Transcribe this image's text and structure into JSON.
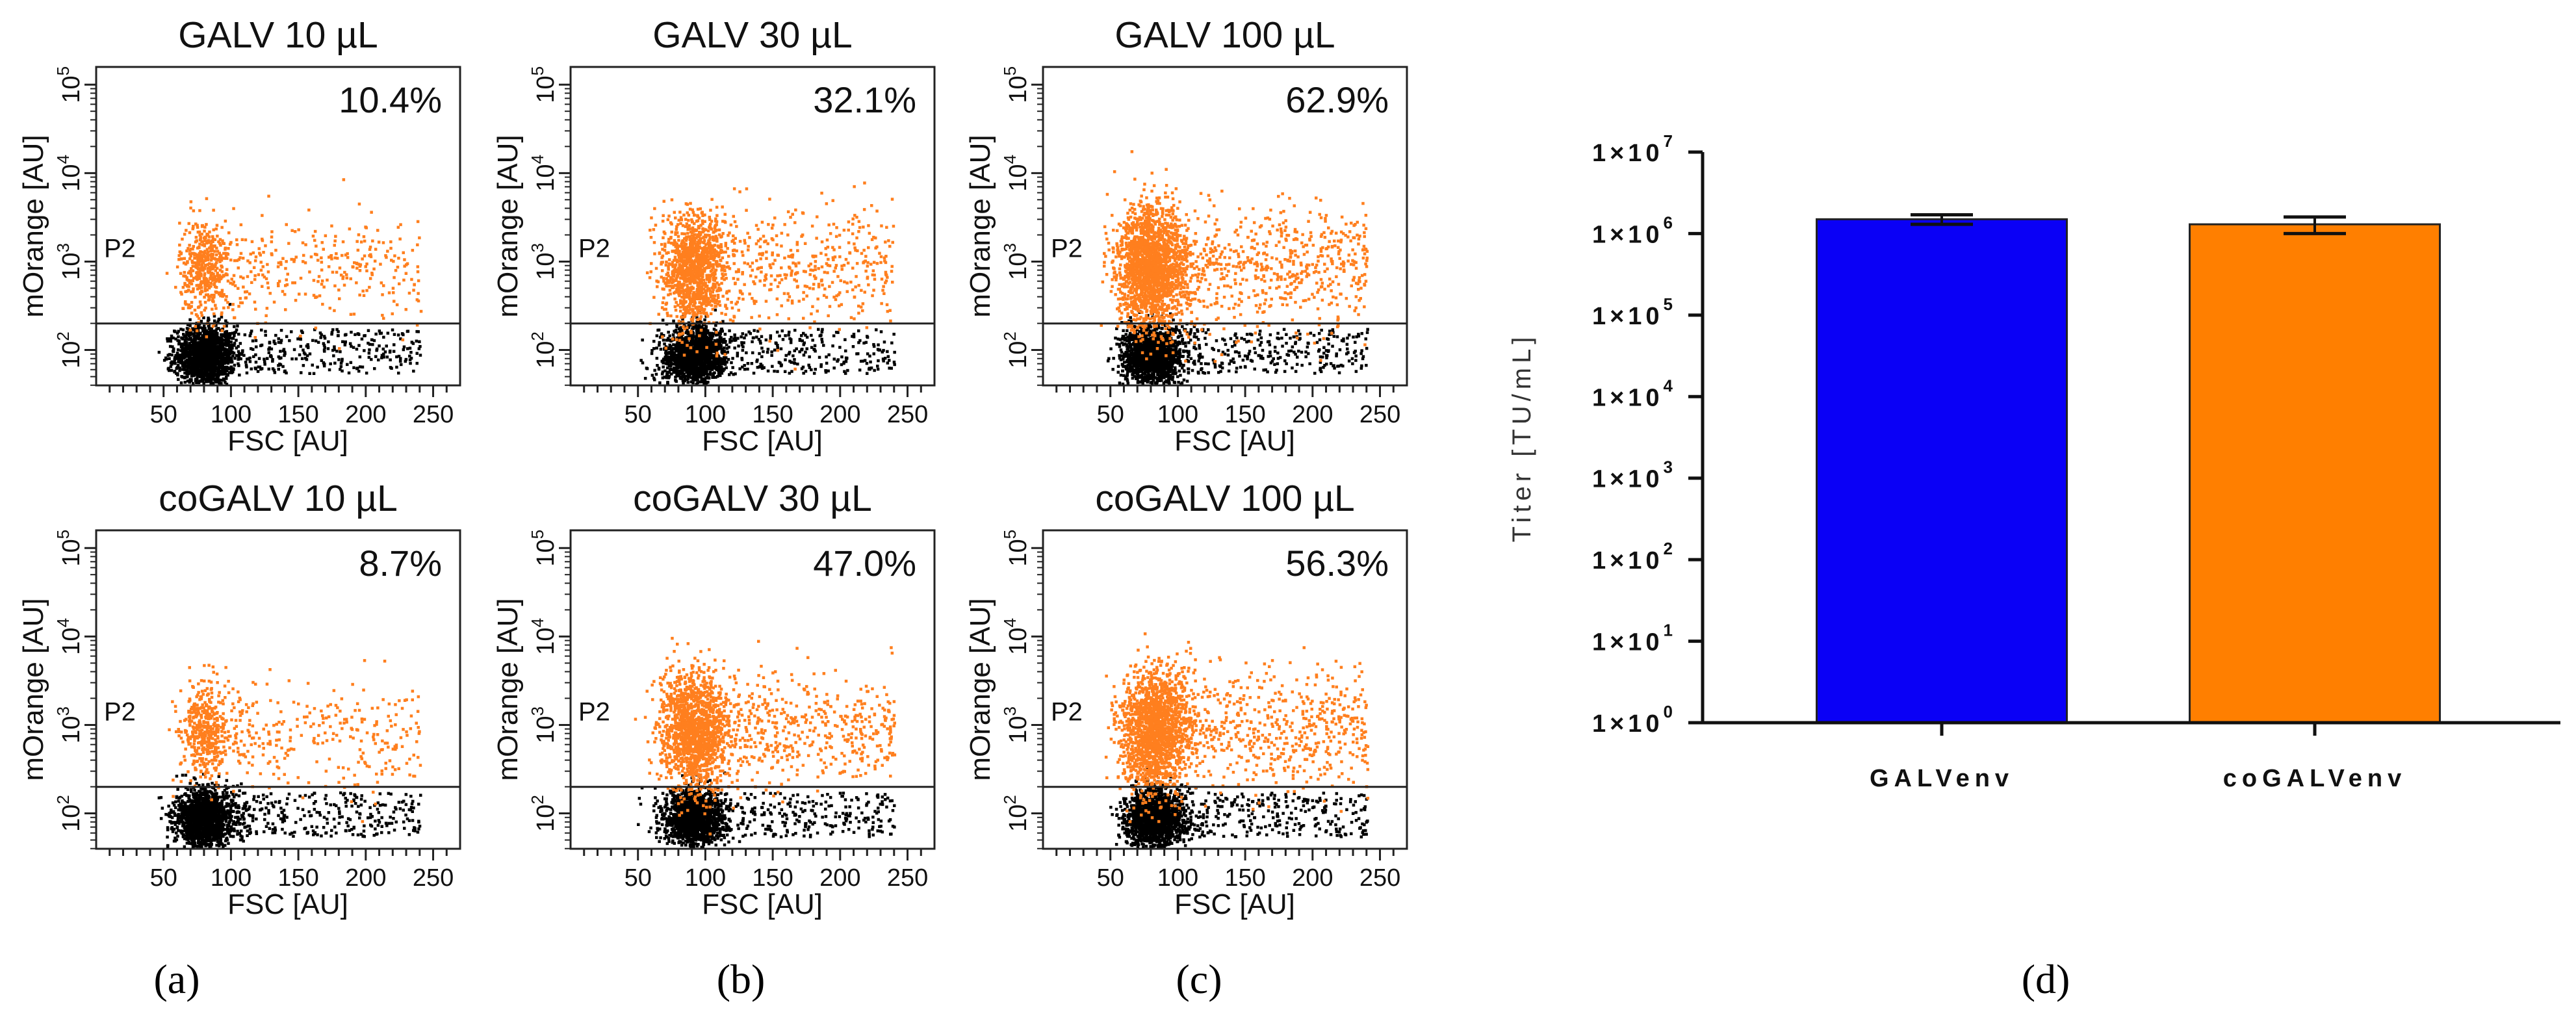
{
  "chart_data": [
    {
      "type": "scatter",
      "title": "GALV 10 µL",
      "percent_label": "10.4%",
      "gate_label": "P2",
      "xlabel": "FSC [AU]",
      "ylabel": "mOrange [AU]",
      "xticks": [
        "50",
        "100",
        "150",
        "200",
        "250"
      ],
      "xlim": [
        0,
        270
      ],
      "ylim": [
        1.6,
        5.2
      ],
      "gate_log10": 2.3,
      "density": 0.42,
      "core_center_x": 80,
      "colors": {
        "positive": "#FF7F1E",
        "negative": "#000000"
      }
    },
    {
      "type": "scatter",
      "title": "GALV 30 µL",
      "percent_label": "32.1%",
      "gate_label": "P2",
      "xlabel": "FSC [AU]",
      "ylabel": "mOrange [AU]",
      "xticks": [
        "50",
        "100",
        "150",
        "200",
        "250"
      ],
      "xlim": [
        0,
        270
      ],
      "ylim": [
        1.6,
        5.2
      ],
      "gate_log10": 2.3,
      "density": 0.75,
      "core_center_x": 90,
      "colors": {
        "positive": "#FF7F1E",
        "negative": "#000000"
      }
    },
    {
      "type": "scatter",
      "title": "GALV 100 µL",
      "percent_label": "62.9%",
      "gate_label": "P2",
      "xlabel": "FSC [AU]",
      "ylabel": "mOrange [AU]",
      "xticks": [
        "50",
        "100",
        "150",
        "200",
        "250"
      ],
      "xlim": [
        0,
        270
      ],
      "ylim": [
        1.6,
        5.2
      ],
      "gate_log10": 2.3,
      "density": 1.0,
      "core_center_x": 80,
      "colors": {
        "positive": "#FF7F1E",
        "negative": "#000000"
      }
    },
    {
      "type": "scatter",
      "title": "coGALV 10 µL",
      "percent_label": "8.7%",
      "gate_label": "P2",
      "xlabel": "FSC [AU]",
      "ylabel": "mOrange [AU]",
      "xticks": [
        "50",
        "100",
        "150",
        "200",
        "250"
      ],
      "xlim": [
        0,
        270
      ],
      "ylim": [
        1.6,
        5.2
      ],
      "gate_log10": 2.3,
      "density": 0.4,
      "core_center_x": 80,
      "colors": {
        "positive": "#FF7F1E",
        "negative": "#000000"
      }
    },
    {
      "type": "scatter",
      "title": "coGALV 30 µL",
      "percent_label": "47.0%",
      "gate_label": "P2",
      "xlabel": "FSC [AU]",
      "ylabel": "mOrange [AU]",
      "xticks": [
        "50",
        "100",
        "150",
        "200",
        "250"
      ],
      "xlim": [
        0,
        270
      ],
      "ylim": [
        1.6,
        5.2
      ],
      "gate_log10": 2.3,
      "density": 0.85,
      "core_center_x": 90,
      "colors": {
        "positive": "#FF7F1E",
        "negative": "#000000"
      }
    },
    {
      "type": "scatter",
      "title": "coGALV 100 µL",
      "percent_label": "56.3%",
      "gate_label": "P2",
      "xlabel": "FSC [AU]",
      "ylabel": "mOrange [AU]",
      "xticks": [
        "50",
        "100",
        "150",
        "200",
        "250"
      ],
      "xlim": [
        0,
        270
      ],
      "ylim": [
        1.6,
        5.2
      ],
      "gate_log10": 2.3,
      "density": 0.95,
      "core_center_x": 82,
      "colors": {
        "positive": "#FF7F1E",
        "negative": "#000000"
      }
    },
    {
      "type": "bar",
      "categories": [
        "GALVenv",
        "coGALVenv"
      ],
      "values": [
        1500000,
        1300000
      ],
      "error": [
        200000,
        300000
      ],
      "ylabel": "Titer [TU/mL]",
      "yscale": "log",
      "ylim_log10": [
        0,
        7
      ],
      "ytick_exponents": [
        "0",
        "1",
        "2",
        "3",
        "4",
        "5",
        "6",
        "7"
      ],
      "ytick_base": "1×10",
      "colors": [
        "#0A00F6",
        "#FF7F00"
      ]
    }
  ],
  "panel_labels": [
    "(a)",
    "(b)",
    "(c)",
    "(d)"
  ]
}
